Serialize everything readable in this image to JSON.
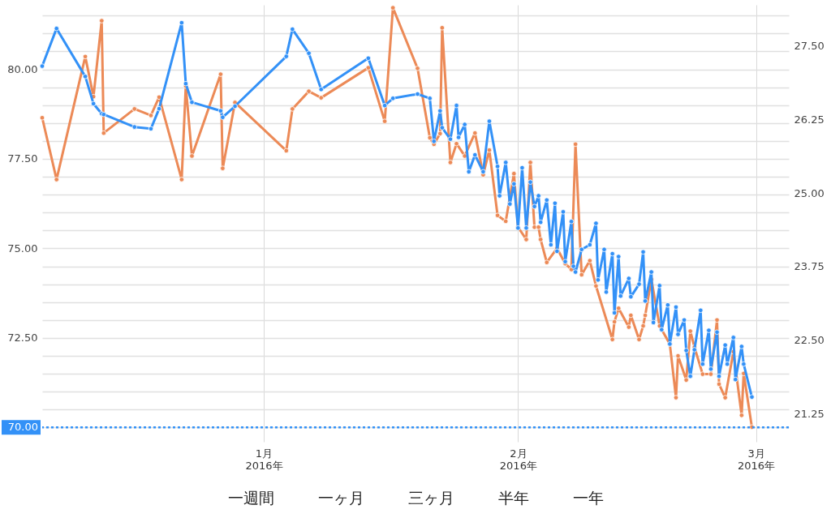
{
  "chart_data": {
    "type": "line",
    "marker": "circle",
    "line_style": "solid",
    "grid": true,
    "xlim": [
      "2015-12-05",
      "2016-03-05"
    ],
    "xticks": [
      {
        "value": "2016-01-01",
        "label": "1月\n2016年"
      },
      {
        "value": "2016-02-01",
        "label": "2月\n2016年"
      },
      {
        "value": "2016-03-01",
        "label": "3月\n2016年"
      }
    ],
    "ylim": [
      69.6,
      81.8
    ],
    "yticks": [
      {
        "value": 70,
        "label": null
      },
      {
        "value": 70.5,
        "label": null
      },
      {
        "value": 71,
        "label": null
      },
      {
        "value": 71.5,
        "label": null
      },
      {
        "value": 72,
        "label": null
      },
      {
        "value": 72.5,
        "label": "72.50"
      },
      {
        "value": 73,
        "label": null
      },
      {
        "value": 73.5,
        "label": null
      },
      {
        "value": 74,
        "label": null
      },
      {
        "value": 74.5,
        "label": null
      },
      {
        "value": 75,
        "label": "75.00"
      },
      {
        "value": 75.5,
        "label": null
      },
      {
        "value": 76,
        "label": null
      },
      {
        "value": 76.5,
        "label": null
      },
      {
        "value": 77,
        "label": null
      },
      {
        "value": 77.5,
        "label": "77.50"
      },
      {
        "value": 78,
        "label": null
      },
      {
        "value": 78.5,
        "label": null
      },
      {
        "value": 79,
        "label": null
      },
      {
        "value": 79.5,
        "label": null
      },
      {
        "value": 80,
        "label": "80.00"
      },
      {
        "value": 80.5,
        "label": null
      },
      {
        "value": 81,
        "label": null
      },
      {
        "value": 81.5,
        "label": null
      }
    ],
    "y2lim": [
      20.77,
      28.2
    ],
    "y2ticks": [
      {
        "value": 21.25,
        "label": "21.25"
      },
      {
        "value": 22.5,
        "label": "22.50"
      },
      {
        "value": 23.75,
        "label": "23.75"
      },
      {
        "value": 25,
        "label": "25.00"
      },
      {
        "value": 26.25,
        "label": "26.25"
      },
      {
        "value": 27.5,
        "label": "27.50"
      }
    ],
    "ref_lines": [
      {
        "axis": "y",
        "value": 70,
        "label": "70.00",
        "color": "#3391f7",
        "line_style": "dotted"
      }
    ],
    "annotations": [
      "一週間",
      "一ヶ月",
      "三ヶ月",
      "半年",
      "一年"
    ],
    "series": [
      {
        "color": "#3391f7",
        "x": [
          "2015-12-05T00:00",
          "2015-12-06T18:00",
          "2015-12-10T06:00",
          "2015-12-11T06:00",
          "2015-12-12T06:00",
          "2015-12-12T12:00",
          "2015-12-16T06:00",
          "2015-12-18T06:00",
          "2015-12-19T06:00",
          "2015-12-22T00:00",
          "2015-12-22T12:00",
          "2015-12-23T06:00",
          "2015-12-26T18:00",
          "2015-12-27T00:00",
          "2015-12-28T12:00",
          "2016-01-03T18:00",
          "2016-01-04T12:00",
          "2016-01-06T12:00",
          "2016-01-08T00:00",
          "2016-01-13T18:00",
          "2016-01-15T18:00",
          "2016-01-16T18:00",
          "2016-01-19T18:00",
          "2016-01-21T06:00",
          "2016-01-21T18:00",
          "2016-01-22T12:00",
          "2016-01-22T18:00",
          "2016-01-23T18:00",
          "2016-01-24T12:00",
          "2016-01-24T18:00",
          "2016-01-25T12:00",
          "2016-01-26T00:00",
          "2016-01-26T18:00",
          "2016-01-27T18:00",
          "2016-01-28T12:00",
          "2016-01-29T12:00",
          "2016-01-29T18:00",
          "2016-01-30T12:00",
          "2016-01-31T00:00",
          "2016-01-31T12:00",
          "2016-02-01T00:00",
          "2016-02-01T12:00",
          "2016-02-02T00:00",
          "2016-02-02T12:00",
          "2016-02-03T00:00",
          "2016-02-03T12:00",
          "2016-02-03T18:00",
          "2016-02-04T12:00",
          "2016-02-05T00:00",
          "2016-02-05T12:00",
          "2016-02-05T18:00",
          "2016-02-06T12:00",
          "2016-02-06T18:00",
          "2016-02-07T12:00",
          "2016-02-07T18:00",
          "2016-02-08T00:00",
          "2016-02-08T18:00",
          "2016-02-09T18:00",
          "2016-02-10T12:00",
          "2016-02-10T18:00",
          "2016-02-11T12:00",
          "2016-02-11T18:00",
          "2016-02-12T12:00",
          "2016-02-12T18:00",
          "2016-02-13T06:00",
          "2016-02-13T12:00",
          "2016-02-14T12:00",
          "2016-02-14T18:00",
          "2016-02-15T18:00",
          "2016-02-16T06:00",
          "2016-02-16T12:00",
          "2016-02-17T06:00",
          "2016-02-17T12:00",
          "2016-02-18T06:00",
          "2016-02-18T12:00",
          "2016-02-19T06:00",
          "2016-02-19T12:00",
          "2016-02-20T06:00",
          "2016-02-20T12:00",
          "2016-02-21T06:00",
          "2016-02-21T12:00",
          "2016-02-22T00:00",
          "2016-02-22T12:00",
          "2016-02-23T06:00",
          "2016-02-23T12:00",
          "2016-02-24T06:00",
          "2016-02-24T12:00",
          "2016-02-25T06:00",
          "2016-02-25T12:00",
          "2016-02-26T06:00",
          "2016-02-26T12:00",
          "2016-02-27T06:00",
          "2016-02-27T12:00",
          "2016-02-28T06:00",
          "2016-02-28T12:00",
          "2016-02-29T12:00"
        ],
        "values": [
          80.09,
          81.14,
          79.8,
          79.04,
          78.76,
          78.74,
          78.39,
          78.34,
          78.9,
          81.3,
          79.6,
          79.08,
          78.84,
          78.66,
          78.97,
          80.36,
          81.12,
          80.45,
          79.44,
          80.31,
          78.99,
          79.19,
          79.31,
          79.19,
          77.99,
          78.84,
          78.37,
          78.05,
          78.99,
          78.1,
          78.46,
          77.14,
          77.61,
          77.14,
          78.55,
          77.29,
          76.47,
          77.4,
          76.24,
          76.8,
          75.57,
          77.25,
          75.57,
          76.85,
          76.17,
          76.47,
          75.73,
          76.35,
          75.1,
          76.26,
          74.92,
          76.02,
          74.63,
          75.75,
          74.5,
          74.34,
          74.97,
          75.1,
          75.7,
          74.12,
          74.97,
          73.78,
          74.85,
          73.2,
          74.77,
          73.67,
          74.16,
          73.65,
          74.0,
          74.9,
          73.53,
          74.34,
          72.93,
          73.96,
          72.73,
          73.42,
          72.33,
          73.36,
          72.6,
          73.0,
          72.15,
          71.43,
          72.17,
          73.27,
          71.77,
          72.71,
          71.63,
          72.66,
          71.43,
          72.3,
          71.77,
          72.51,
          71.34,
          72.26,
          71.77,
          70.85
        ]
      },
      {
        "color": "#ec8a57",
        "axis": "y2",
        "x": [
          "2015-12-05T00:00",
          "2015-12-06T18:00",
          "2015-12-10T06:00",
          "2015-12-11T06:00",
          "2015-12-12T06:00",
          "2015-12-12T12:00",
          "2015-12-16T06:00",
          "2015-12-18T06:00",
          "2015-12-19T06:00",
          "2015-12-22T00:00",
          "2015-12-22T12:00",
          "2015-12-23T06:00",
          "2015-12-26T18:00",
          "2015-12-27T00:00",
          "2015-12-28T12:00",
          "2016-01-03T18:00",
          "2016-01-04T12:00",
          "2016-01-06T12:00",
          "2016-01-08T00:00",
          "2016-01-13T18:00",
          "2016-01-15T18:00",
          "2016-01-16T18:00",
          "2016-01-19T18:00",
          "2016-01-21T06:00",
          "2016-01-21T18:00",
          "2016-01-22T12:00",
          "2016-01-22T18:00",
          "2016-01-23T18:00",
          "2016-01-24T12:00",
          "2016-01-25T12:00",
          "2016-01-26T18:00",
          "2016-01-27T18:00",
          "2016-01-28T12:00",
          "2016-01-29T12:00",
          "2016-01-30T12:00",
          "2016-01-31T12:00",
          "2016-02-01T00:00",
          "2016-02-02T00:00",
          "2016-02-02T12:00",
          "2016-02-03T00:00",
          "2016-02-03T12:00",
          "2016-02-03T18:00",
          "2016-02-04T12:00",
          "2016-02-05T18:00",
          "2016-02-06T18:00",
          "2016-02-07T12:00",
          "2016-02-08T00:00",
          "2016-02-08T18:00",
          "2016-02-09T18:00",
          "2016-02-10T12:00",
          "2016-02-12T12:00",
          "2016-02-12T18:00",
          "2016-02-13T06:00",
          "2016-02-14T12:00",
          "2016-02-14T18:00",
          "2016-02-15T18:00",
          "2016-02-16T06:00",
          "2016-02-16T12:00",
          "2016-02-17T06:00",
          "2016-02-18T06:00",
          "2016-02-19T12:00",
          "2016-02-20T06:00",
          "2016-02-20T12:00",
          "2016-02-21T12:00",
          "2016-02-22T00:00",
          "2016-02-22T12:00",
          "2016-02-23T12:00",
          "2016-02-24T12:00",
          "2016-02-25T06:00",
          "2016-02-25T12:00",
          "2016-02-26T06:00",
          "2016-02-27T06:00",
          "2016-02-28T06:00",
          "2016-02-28T12:00",
          "2016-02-29T12:00"
        ],
        "values": [
          26.28,
          25.23,
          27.32,
          26.64,
          27.93,
          26.02,
          26.43,
          26.32,
          26.63,
          25.23,
          26.82,
          25.63,
          27.02,
          25.42,
          26.54,
          25.72,
          26.43,
          26.73,
          26.62,
          27.13,
          26.22,
          28.15,
          27.12,
          25.94,
          25.83,
          26.01,
          27.81,
          25.52,
          25.84,
          25.63,
          26.02,
          25.31,
          25.73,
          24.62,
          24.52,
          25.33,
          24.42,
          24.21,
          25.52,
          24.42,
          24.42,
          24.21,
          23.82,
          24.06,
          23.8,
          23.7,
          25.83,
          23.61,
          23.85,
          23.42,
          22.51,
          22.81,
          23.04,
          22.72,
          22.92,
          22.51,
          22.74,
          22.92,
          23.53,
          22.74,
          22.43,
          21.52,
          22.23,
          21.82,
          22.65,
          22.38,
          21.92,
          21.92,
          22.84,
          21.75,
          21.52,
          22.3,
          21.22,
          21.93,
          21.02
        ]
      }
    ]
  }
}
